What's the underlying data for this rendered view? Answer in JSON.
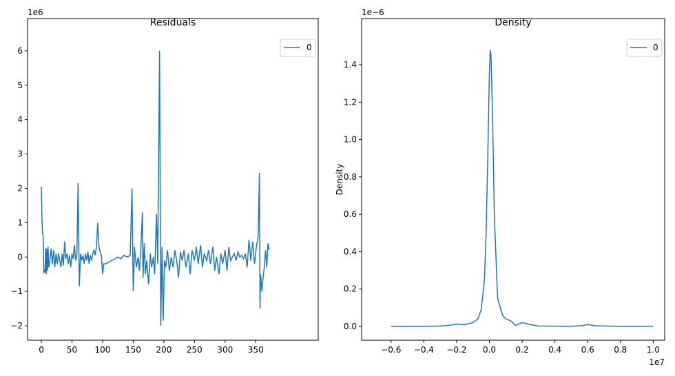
{
  "chart_data": [
    {
      "type": "line",
      "title": "Residuals",
      "y_offset_label": "1e6",
      "x": [
        0,
        1,
        2,
        3,
        4,
        5,
        6,
        7,
        8,
        9,
        10,
        11,
        12,
        14,
        16,
        18,
        20,
        22,
        24,
        26,
        28,
        30,
        32,
        34,
        36,
        38,
        40,
        42,
        44,
        46,
        48,
        50,
        52,
        54,
        56,
        58,
        60,
        62,
        64,
        66,
        68,
        70,
        72,
        74,
        76,
        78,
        80,
        82,
        84,
        86,
        88,
        90,
        92,
        94,
        96,
        98,
        100,
        102,
        105,
        110,
        115,
        120,
        125,
        130,
        135,
        140,
        145,
        148,
        150,
        152,
        155,
        158,
        160,
        162,
        165,
        166,
        168,
        170,
        172,
        175,
        178,
        180,
        183,
        185,
        188,
        190,
        193,
        195,
        197,
        199,
        201,
        203,
        206,
        209,
        212,
        215,
        218,
        221,
        224,
        227,
        230,
        233,
        236,
        240,
        243,
        246,
        250,
        253,
        256,
        260,
        263,
        266,
        270,
        273,
        276,
        280,
        283,
        286,
        290,
        293,
        296,
        300,
        303,
        306,
        309,
        312,
        315,
        318,
        321,
        324,
        327,
        330,
        333,
        336,
        339,
        342,
        345,
        348,
        351,
        354,
        356,
        357,
        358,
        360,
        362,
        364,
        366,
        368,
        370,
        372
      ],
      "series": [
        {
          "name": "0",
          "color": "#1f77b4",
          "values": [
            2.05,
            1.1,
            0.7,
            0.6,
            -0.45,
            -0.4,
            -0.45,
            0.25,
            -0.5,
            0.25,
            -0.4,
            0.3,
            -0.3,
            -0.1,
            0.25,
            -0.2,
            0.2,
            -0.3,
            0.1,
            -0.2,
            0.1,
            -0.1,
            -0.3,
            0.1,
            -0.25,
            0.45,
            -0.05,
            0.1,
            -0.2,
            0.05,
            -0.3,
            0.1,
            -0.05,
            0.35,
            -0.1,
            0.05,
            2.15,
            -0.85,
            0.1,
            -0.1,
            0.05,
            -0.2,
            0.1,
            -0.1,
            0.15,
            -0.2,
            0.05,
            -0.1,
            0.1,
            0.2,
            0.05,
            0.3,
            1.0,
            0.3,
            0.15,
            0.05,
            -0.5,
            -0.2,
            -0.2,
            -0.15,
            -0.1,
            -0.05,
            0.0,
            -0.05,
            0.05,
            0.0,
            0.05,
            2.0,
            -1.0,
            0.3,
            -0.3,
            0.0,
            -0.4,
            0.1,
            1.3,
            -0.6,
            0.4,
            -0.5,
            -0.1,
            -0.8,
            0.1,
            -0.3,
            0.0,
            -0.5,
            1.25,
            -0.2,
            6.0,
            -2.0,
            0.3,
            -1.85,
            -0.1,
            -0.3,
            0.2,
            -0.4,
            0.0,
            -0.3,
            0.2,
            -0.1,
            -0.6,
            0.15,
            -0.1,
            0.2,
            -0.3,
            0.1,
            -0.5,
            0.2,
            -0.1,
            0.3,
            -0.2,
            0.35,
            -0.3,
            0.1,
            -0.1,
            0.2,
            -0.2,
            0.3,
            -0.4,
            0.0,
            -0.5,
            0.1,
            -0.2,
            0.2,
            -0.4,
            0.3,
            -0.1,
            0.0,
            0.1,
            -0.1,
            0.15,
            0.0,
            0.05,
            -0.05,
            0.1,
            -0.3,
            0.5,
            -0.1,
            0.45,
            -0.2,
            0.3,
            0.6,
            2.45,
            -1.5,
            -0.5,
            -1.0,
            -0.6,
            -0.3,
            0.2,
            -0.3,
            0.4,
            0.2
          ]
        }
      ],
      "xlim": [
        -22.5,
        452
      ],
      "ylim": [
        -2.42,
        6.94
      ],
      "xticks": [
        0,
        50,
        100,
        150,
        200,
        250,
        300,
        350
      ],
      "yticks": [
        {
          "value": -2,
          "label": "−2"
        },
        {
          "value": -1,
          "label": "−1"
        },
        0,
        1,
        2,
        3,
        4,
        5,
        6
      ],
      "legend": "upper right"
    },
    {
      "type": "line",
      "title": "Density",
      "ylabel": "Density",
      "x_offset_label": "1e7",
      "y_offset_label": "1e−6",
      "x": [
        -0.6,
        -0.4,
        -0.3,
        -0.25,
        -0.2,
        -0.15,
        -0.1,
        -0.07,
        -0.05,
        -0.03,
        -0.02,
        -0.01,
        0.0,
        0.005,
        0.01,
        0.02,
        0.03,
        0.05,
        0.08,
        0.1,
        0.13,
        0.16,
        0.2,
        0.25,
        0.3,
        0.5,
        0.57,
        0.6,
        0.65,
        0.8,
        1.0
      ],
      "series": [
        {
          "name": "0",
          "color": "#1f77b4",
          "values": [
            0,
            0,
            0.002,
            0.005,
            0.012,
            0.01,
            0.02,
            0.04,
            0.09,
            0.25,
            0.5,
            0.9,
            1.35,
            1.48,
            1.45,
            1.1,
            0.6,
            0.15,
            0.06,
            0.04,
            0.03,
            0.005,
            0.02,
            0.01,
            0.002,
            0.0,
            0.004,
            0.01,
            0.003,
            0,
            0
          ]
        }
      ],
      "xlim": [
        -0.78,
        1.07
      ],
      "ylim": [
        -0.074,
        1.647
      ],
      "xticks": [
        {
          "value": -0.6,
          "label": "−0.6"
        },
        {
          "value": -0.4,
          "label": "−0.4"
        },
        {
          "value": -0.2,
          "label": "−0.2"
        },
        {
          "value": 0,
          "label": "0.0"
        },
        0.2,
        0.4,
        0.6,
        0.8,
        {
          "value": 1,
          "label": "1.0"
        }
      ],
      "yticks": [
        {
          "value": 0,
          "label": "0.0"
        },
        0.2,
        0.4,
        0.6,
        0.8,
        {
          "value": 1,
          "label": "1.0"
        },
        1.2,
        1.4
      ],
      "legend": "upper right"
    }
  ]
}
